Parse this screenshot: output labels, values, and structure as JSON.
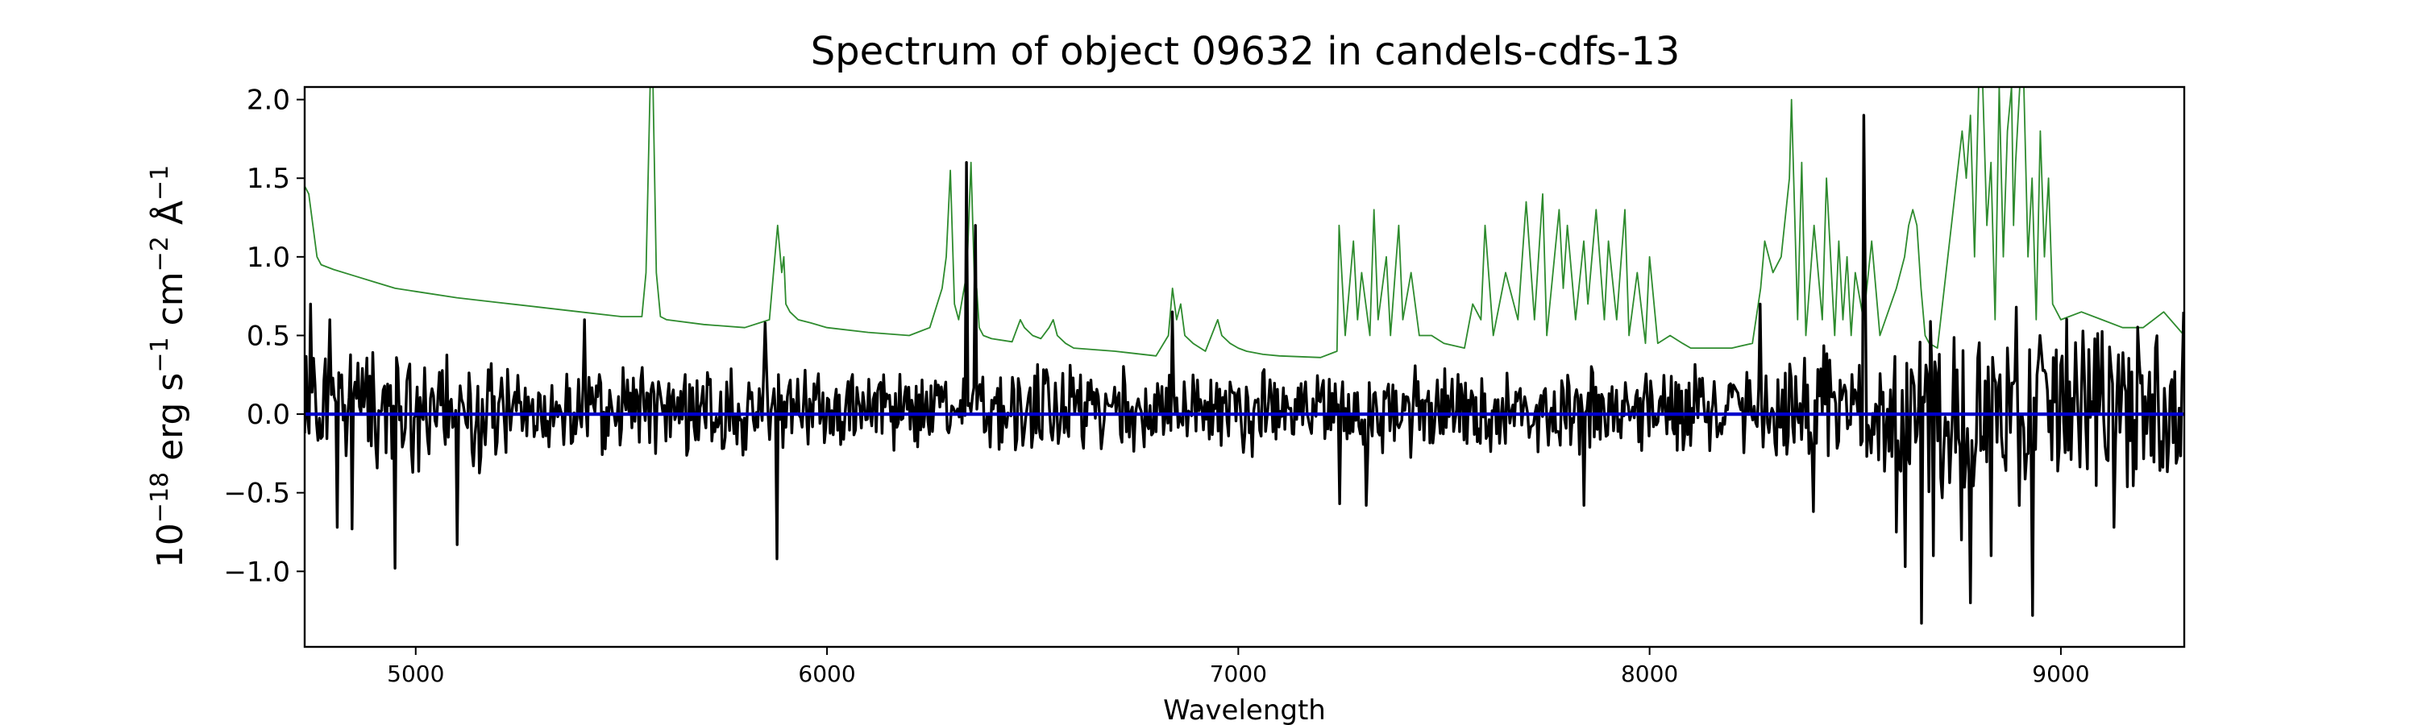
{
  "chart_data": {
    "type": "line",
    "title": "Spectrum of object 09632 in candels-cdfs-13",
    "xlabel": "Wavelength",
    "ylabel": {
      "prefix": "10",
      "exp1": "−18",
      "unit1": " erg s",
      "exp2": "−1",
      "unit2": " cm",
      "exp3": "−2",
      "unit3": " Å",
      "exp4": "−1"
    },
    "xlim": [
      4730,
      9300
    ],
    "ylim": [
      -1.48,
      2.08
    ],
    "xticks": [
      {
        "value": 5000,
        "label": "5000"
      },
      {
        "value": 6000,
        "label": "6000"
      },
      {
        "value": 7000,
        "label": "7000"
      },
      {
        "value": 8000,
        "label": "8000"
      },
      {
        "value": 9000,
        "label": "9000"
      }
    ],
    "yticks": [
      {
        "value": -1.0,
        "label": "−1.0"
      },
      {
        "value": -0.5,
        "label": "−0.5"
      },
      {
        "value": 0.0,
        "label": "0.0"
      },
      {
        "value": 0.5,
        "label": "0.5"
      },
      {
        "value": 1.0,
        "label": "1.0"
      },
      {
        "value": 1.5,
        "label": "1.5"
      },
      {
        "value": 2.0,
        "label": "2.0"
      }
    ],
    "grid": false,
    "colors": {
      "spectrum": "#000000",
      "sky": "#2e8b2e",
      "zero": "#0000cc"
    },
    "series": [
      {
        "role": "zero",
        "x": [
          4730,
          9300
        ],
        "y": [
          0.0,
          0.0
        ]
      },
      {
        "role": "sky",
        "x": [
          4730,
          4740,
          4750,
          4760,
          4770,
          4800,
          4850,
          4900,
          4950,
          5000,
          5100,
          5200,
          5300,
          5400,
          5500,
          5550,
          5560,
          5570,
          5577,
          5585,
          5595,
          5610,
          5700,
          5800,
          5860,
          5880,
          5890,
          5895,
          5900,
          5910,
          5930,
          5960,
          6000,
          6100,
          6200,
          6250,
          6280,
          6290,
          6300,
          6310,
          6320,
          6340,
          6350,
          6360,
          6364,
          6370,
          6380,
          6400,
          6450,
          6470,
          6480,
          6500,
          6520,
          6540,
          6550,
          6560,
          6580,
          6600,
          6700,
          6800,
          6830,
          6840,
          6850,
          6860,
          6870,
          6890,
          6920,
          6950,
          6960,
          6980,
          7000,
          7020,
          7060,
          7100,
          7200,
          7240,
          7245,
          7260,
          7280,
          7290,
          7300,
          7320,
          7330,
          7340,
          7360,
          7370,
          7390,
          7400,
          7420,
          7440,
          7470,
          7500,
          7550,
          7570,
          7590,
          7600,
          7620,
          7650,
          7680,
          7700,
          7720,
          7740,
          7750,
          7780,
          7790,
          7800,
          7820,
          7840,
          7850,
          7870,
          7890,
          7900,
          7920,
          7940,
          7950,
          7970,
          7990,
          8000,
          8020,
          8050,
          8080,
          8100,
          8150,
          8200,
          8250,
          8270,
          8280,
          8300,
          8320,
          8340,
          8345,
          8360,
          8370,
          8380,
          8400,
          8420,
          8430,
          8450,
          8460,
          8470,
          8480,
          8490,
          8500,
          8520,
          8540,
          8560,
          8600,
          8620,
          8630,
          8640,
          8650,
          8660,
          8670,
          8680,
          8700,
          8760,
          8770,
          8780,
          8790,
          8800,
          8810,
          8820,
          8830,
          8840,
          8850,
          8860,
          8870,
          8880,
          8885,
          8890,
          8900,
          8910,
          8920,
          8930,
          8940,
          8950,
          8960,
          8970,
          8980,
          9000,
          9050,
          9100,
          9150,
          9200,
          9250,
          9300
        ],
        "y": [
          1.45,
          1.4,
          1.2,
          1.0,
          0.95,
          0.92,
          0.88,
          0.84,
          0.8,
          0.78,
          0.74,
          0.71,
          0.68,
          0.65,
          0.62,
          0.62,
          0.9,
          2.08,
          2.08,
          0.9,
          0.62,
          0.6,
          0.57,
          0.55,
          0.6,
          1.2,
          0.9,
          1.0,
          0.7,
          0.65,
          0.6,
          0.58,
          0.55,
          0.52,
          0.5,
          0.55,
          0.8,
          1.0,
          1.55,
          0.7,
          0.6,
          0.9,
          1.6,
          0.7,
          0.8,
          0.55,
          0.5,
          0.48,
          0.46,
          0.6,
          0.55,
          0.5,
          0.48,
          0.55,
          0.6,
          0.5,
          0.45,
          0.42,
          0.4,
          0.37,
          0.5,
          0.8,
          0.6,
          0.7,
          0.5,
          0.45,
          0.4,
          0.6,
          0.5,
          0.45,
          0.42,
          0.4,
          0.38,
          0.37,
          0.36,
          0.4,
          1.2,
          0.5,
          1.1,
          0.6,
          0.9,
          0.5,
          1.3,
          0.6,
          1.0,
          0.5,
          1.2,
          0.6,
          0.9,
          0.5,
          0.5,
          0.45,
          0.42,
          0.7,
          0.6,
          1.2,
          0.5,
          0.9,
          0.6,
          1.35,
          0.6,
          1.4,
          0.5,
          1.3,
          0.8,
          1.2,
          0.6,
          1.1,
          0.7,
          1.3,
          0.6,
          1.1,
          0.6,
          1.3,
          0.5,
          0.9,
          0.45,
          1.0,
          0.45,
          0.5,
          0.45,
          0.42,
          0.42,
          0.42,
          0.45,
          0.8,
          1.1,
          0.9,
          1.0,
          1.5,
          2.0,
          0.6,
          1.6,
          0.5,
          1.2,
          0.6,
          1.5,
          0.5,
          1.1,
          0.6,
          1.0,
          0.5,
          0.9,
          0.6,
          1.1,
          0.5,
          0.8,
          1.0,
          1.2,
          1.3,
          1.2,
          0.8,
          0.5,
          0.45,
          0.42,
          1.8,
          1.5,
          1.9,
          1.0,
          2.08,
          2.08,
          1.2,
          1.6,
          0.6,
          2.08,
          1.0,
          1.8,
          2.08,
          1.2,
          1.6,
          2.08,
          2.08,
          1.0,
          1.5,
          0.6,
          1.8,
          1.0,
          1.5,
          0.7,
          0.6,
          0.65,
          0.6,
          0.55,
          0.55,
          0.65,
          0.5
        ]
      }
    ]
  }
}
